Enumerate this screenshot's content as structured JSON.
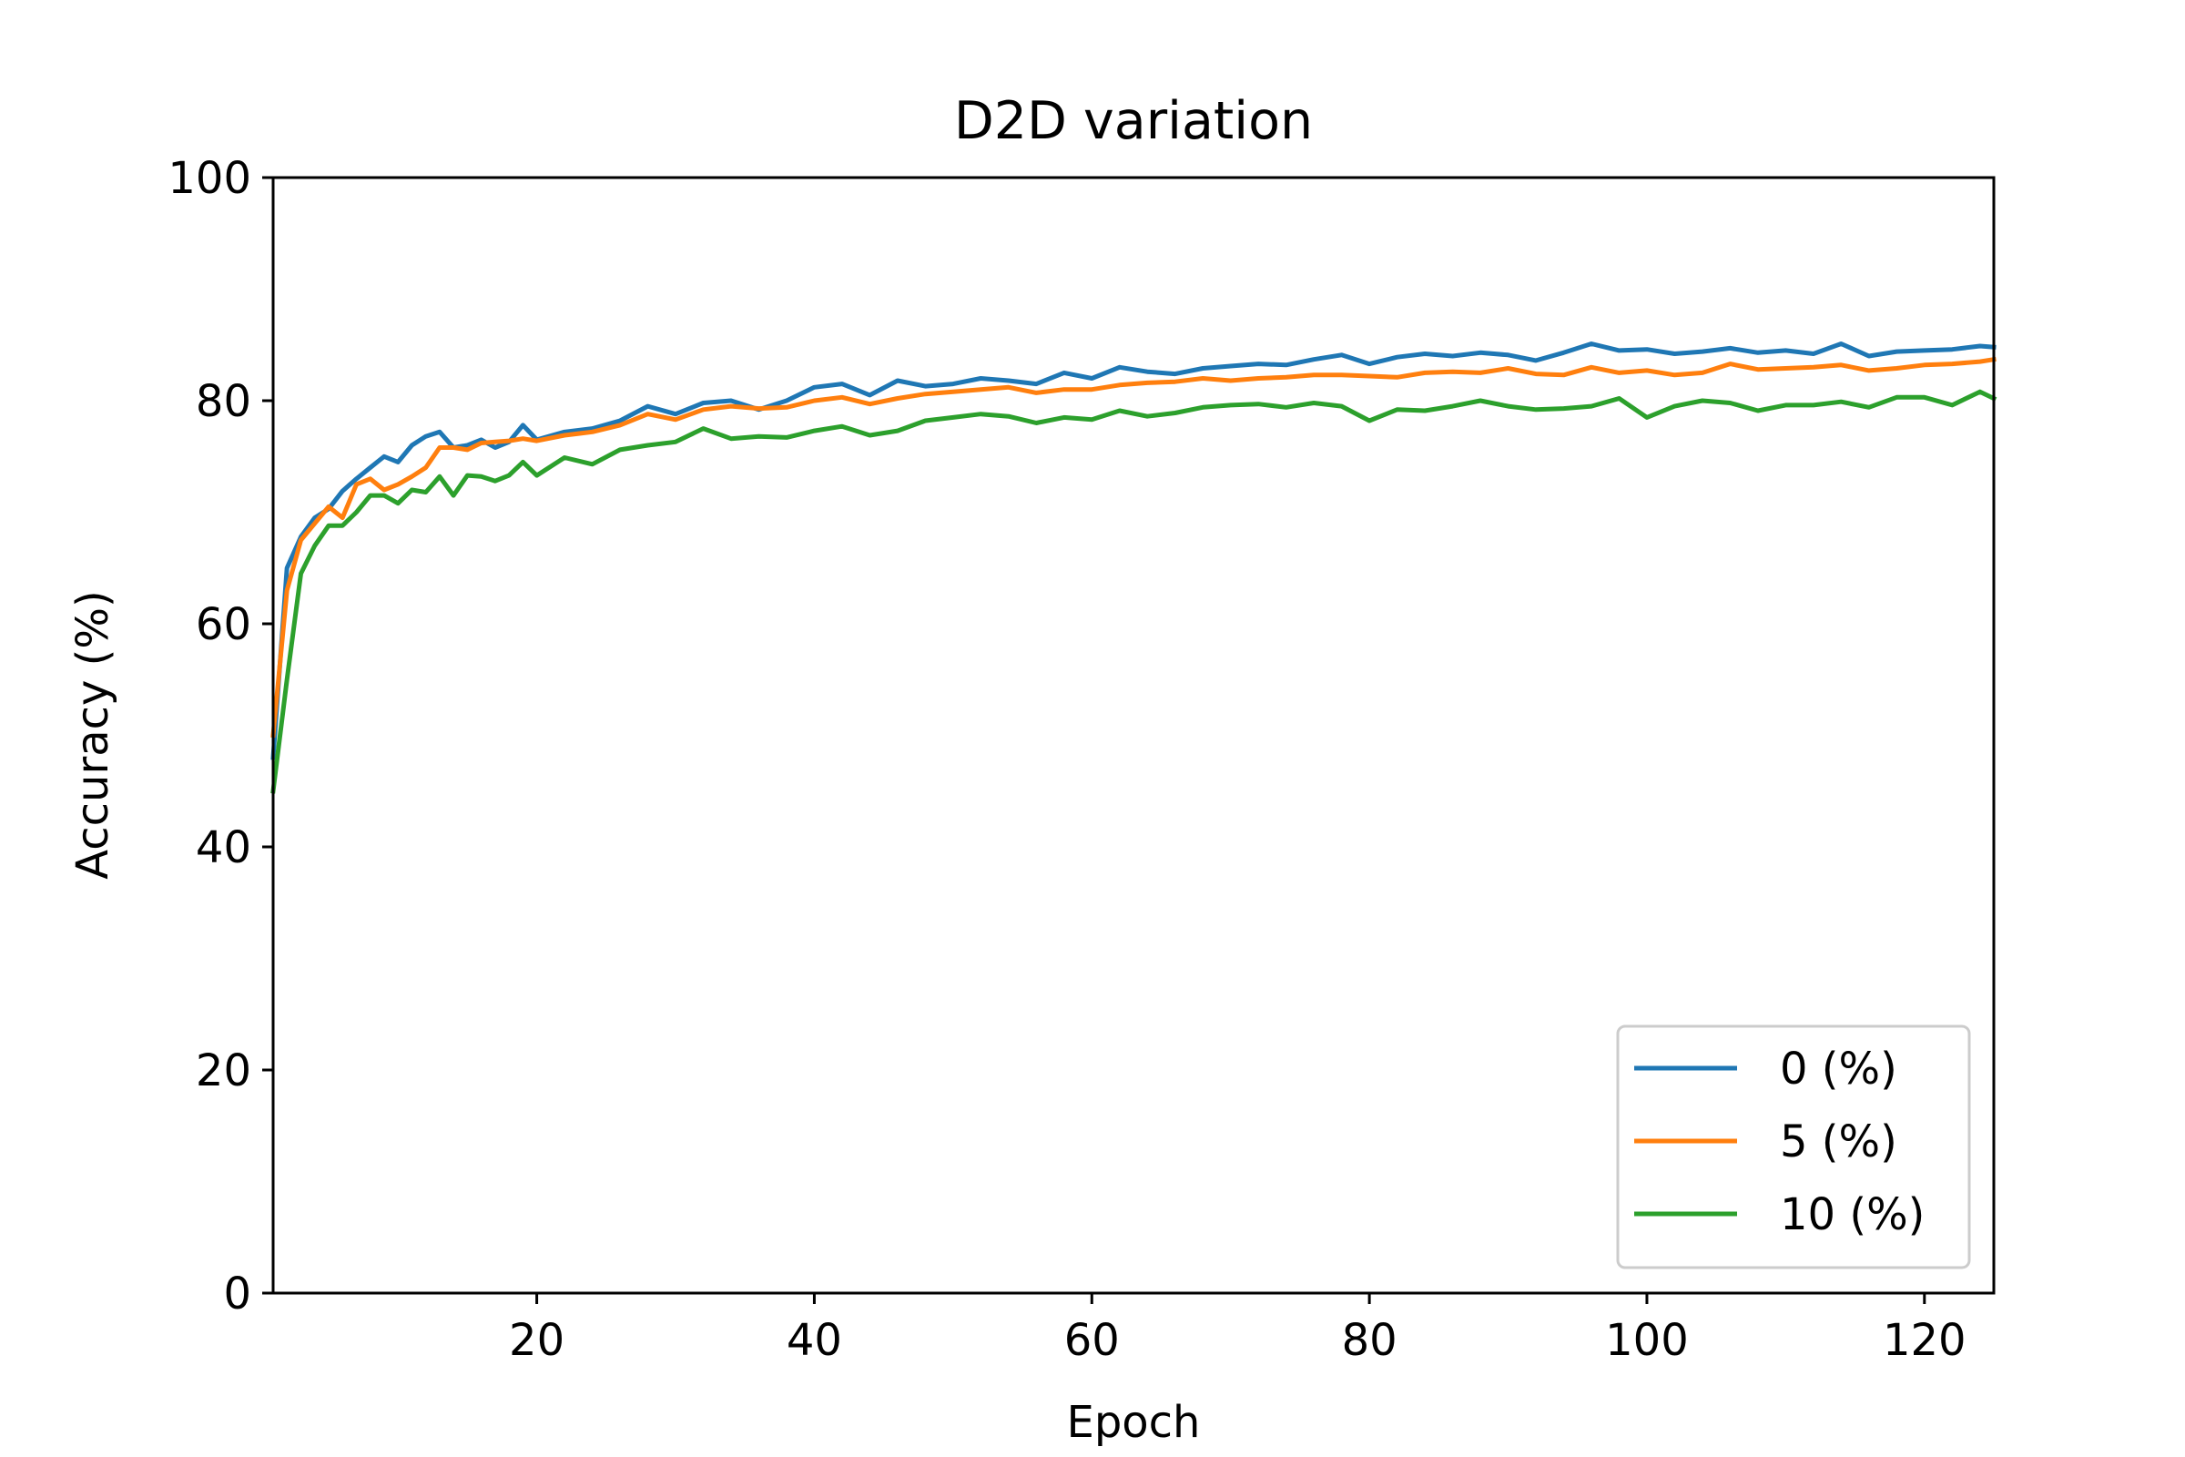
{
  "chart_data": {
    "type": "line",
    "title": "D2D variation",
    "xlabel": "Epoch",
    "ylabel": "Accuracy (%)",
    "xlim": [
      1,
      125
    ],
    "ylim": [
      0,
      100
    ],
    "xticks": [
      20,
      40,
      60,
      80,
      100,
      120
    ],
    "yticks": [
      0,
      20,
      40,
      60,
      80,
      100
    ],
    "grid": false,
    "legend_position": "lower-right",
    "series": [
      {
        "name": "0 (%)",
        "color": "#1f77b4",
        "x": [
          1,
          2,
          3,
          4,
          5,
          6,
          7,
          8,
          9,
          10,
          11,
          12,
          13,
          14,
          15,
          16,
          17,
          18,
          19,
          20,
          22,
          24,
          26,
          28,
          30,
          32,
          34,
          36,
          38,
          40,
          42,
          44,
          46,
          48,
          50,
          52,
          54,
          56,
          58,
          60,
          62,
          64,
          66,
          68,
          70,
          72,
          74,
          76,
          78,
          80,
          82,
          84,
          86,
          88,
          90,
          92,
          94,
          96,
          98,
          100,
          102,
          104,
          106,
          108,
          110,
          112,
          114,
          116,
          118,
          120,
          122,
          124,
          125
        ],
        "y": [
          48.0,
          65.0,
          67.8,
          69.5,
          70.3,
          71.9,
          73.0,
          74.0,
          75.0,
          74.5,
          76.0,
          76.8,
          77.2,
          75.8,
          76.0,
          76.5,
          75.8,
          76.3,
          77.8,
          76.5,
          77.2,
          77.5,
          78.2,
          79.5,
          78.8,
          79.8,
          80.0,
          79.2,
          80.0,
          81.2,
          81.5,
          80.5,
          81.8,
          81.3,
          81.5,
          82.0,
          81.8,
          81.5,
          82.5,
          82.0,
          83.0,
          82.6,
          82.4,
          82.9,
          83.1,
          83.3,
          83.2,
          83.7,
          84.1,
          83.3,
          83.9,
          84.2,
          84.0,
          84.3,
          84.1,
          83.6,
          84.3,
          85.1,
          84.5,
          84.6,
          84.2,
          84.4,
          84.7,
          84.3,
          84.5,
          84.2,
          85.1,
          84.0,
          84.4,
          84.5,
          84.6,
          84.9,
          84.8
        ]
      },
      {
        "name": "5 (%)",
        "color": "#ff7f0e",
        "x": [
          1,
          2,
          3,
          4,
          5,
          6,
          7,
          8,
          9,
          10,
          11,
          12,
          13,
          14,
          15,
          16,
          17,
          18,
          19,
          20,
          22,
          24,
          26,
          28,
          30,
          32,
          34,
          36,
          38,
          40,
          42,
          44,
          46,
          48,
          50,
          52,
          54,
          56,
          58,
          60,
          62,
          64,
          66,
          68,
          70,
          72,
          74,
          76,
          78,
          80,
          82,
          84,
          86,
          88,
          90,
          92,
          94,
          96,
          98,
          100,
          102,
          104,
          106,
          108,
          110,
          112,
          114,
          116,
          118,
          120,
          122,
          124,
          125
        ],
        "y": [
          50.0,
          63.0,
          67.5,
          69.0,
          70.5,
          69.5,
          72.5,
          73.0,
          72.0,
          72.5,
          73.2,
          74.0,
          75.8,
          75.8,
          75.6,
          76.2,
          76.3,
          76.4,
          76.6,
          76.4,
          76.9,
          77.2,
          77.8,
          78.8,
          78.3,
          79.2,
          79.5,
          79.3,
          79.4,
          80.0,
          80.3,
          79.7,
          80.2,
          80.6,
          80.8,
          81.0,
          81.2,
          80.7,
          81.0,
          81.0,
          81.4,
          81.6,
          81.7,
          82.0,
          81.8,
          82.0,
          82.1,
          82.3,
          82.3,
          82.2,
          82.1,
          82.5,
          82.6,
          82.5,
          82.9,
          82.4,
          82.3,
          83.0,
          82.5,
          82.7,
          82.3,
          82.5,
          83.3,
          82.8,
          82.9,
          83.0,
          83.2,
          82.7,
          82.9,
          83.2,
          83.3,
          83.5,
          83.7
        ]
      },
      {
        "name": "10 (%)",
        "color": "#2ca02c",
        "x": [
          1,
          2,
          3,
          4,
          5,
          6,
          7,
          8,
          9,
          10,
          11,
          12,
          13,
          14,
          15,
          16,
          17,
          18,
          19,
          20,
          22,
          24,
          26,
          28,
          30,
          32,
          34,
          36,
          38,
          40,
          42,
          44,
          46,
          48,
          50,
          52,
          54,
          56,
          58,
          60,
          62,
          64,
          66,
          68,
          70,
          72,
          74,
          76,
          78,
          80,
          82,
          84,
          86,
          88,
          90,
          92,
          94,
          96,
          98,
          100,
          102,
          104,
          106,
          108,
          110,
          112,
          114,
          116,
          118,
          120,
          122,
          124,
          125
        ],
        "y": [
          45.0,
          55.0,
          64.5,
          67.0,
          68.8,
          68.8,
          70.0,
          71.5,
          71.5,
          70.8,
          72.0,
          71.8,
          73.2,
          71.5,
          73.3,
          73.2,
          72.8,
          73.3,
          74.5,
          73.3,
          74.9,
          74.3,
          75.6,
          76.0,
          76.3,
          77.5,
          76.6,
          76.8,
          76.7,
          77.3,
          77.7,
          76.9,
          77.3,
          78.2,
          78.5,
          78.8,
          78.6,
          78.0,
          78.5,
          78.3,
          79.1,
          78.6,
          78.9,
          79.4,
          79.6,
          79.7,
          79.4,
          79.8,
          79.5,
          78.2,
          79.2,
          79.1,
          79.5,
          80.0,
          79.5,
          79.2,
          79.3,
          79.5,
          80.2,
          78.5,
          79.5,
          80.0,
          79.8,
          79.1,
          79.6,
          79.6,
          79.9,
          79.4,
          80.3,
          80.3,
          79.6,
          80.8,
          80.2
        ]
      }
    ]
  }
}
